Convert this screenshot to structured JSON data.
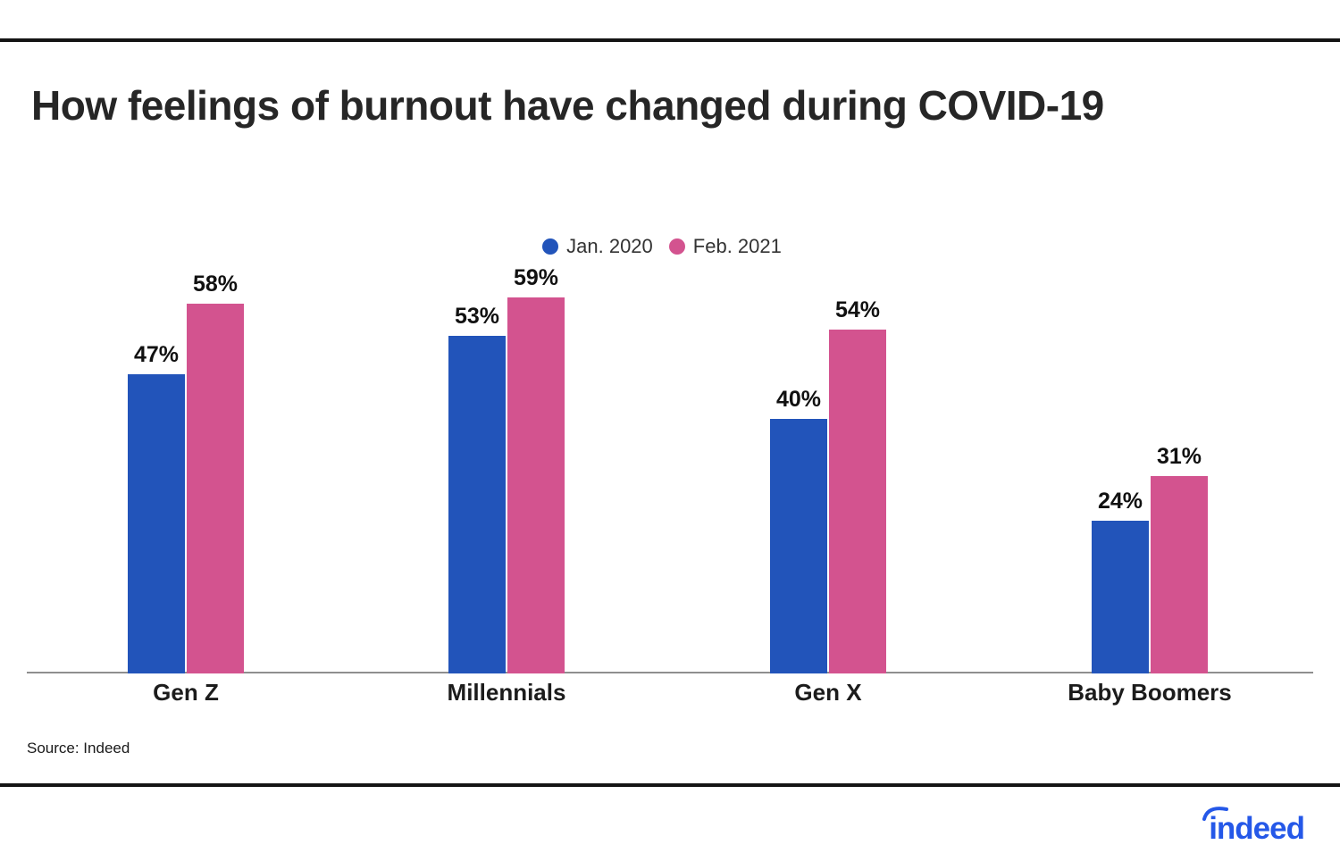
{
  "page": {
    "title": "How feelings of burnout have changed during COVID-19"
  },
  "chart_data": {
    "type": "bar",
    "title": "How feelings of burnout have changed during COVID-19",
    "categories": [
      "Gen Z",
      "Millennials",
      "Gen X",
      "Baby Boomers"
    ],
    "series": [
      {
        "name": "Jan. 2020",
        "color": "#2254BA",
        "values": [
          47,
          53,
          40,
          24
        ],
        "value_labels": [
          "47%",
          "53%",
          "40%",
          "24%"
        ]
      },
      {
        "name": "Feb. 2021",
        "color": "#D3538F",
        "values": [
          58,
          59,
          54,
          31
        ],
        "value_labels": [
          "58%",
          "59%",
          "54%",
          "31%"
        ]
      }
    ],
    "unit": "%",
    "ylim": [
      0,
      100
    ],
    "legend_position": "top-center",
    "grid": false,
    "value_labels_shown": true,
    "axis_line_color": "#8F8F8F"
  },
  "footer": {
    "source": "Source: Indeed"
  },
  "branding": {
    "logo_text": "indeed",
    "logo_color": "#2558E8"
  }
}
